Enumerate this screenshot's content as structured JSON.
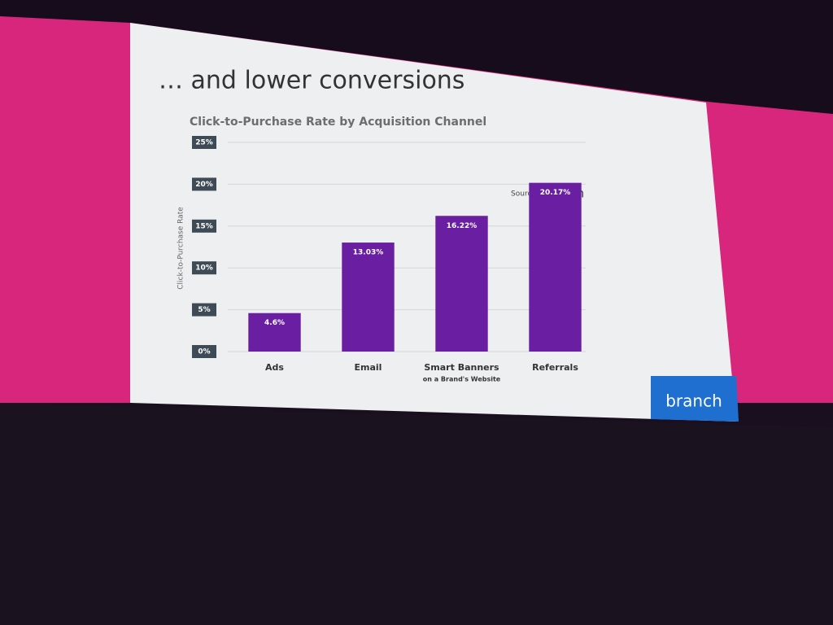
{
  "slide_title": "… and lower conversions",
  "source_label": "Source:",
  "source_name": "branch",
  "logo": "branch",
  "chart_data": {
    "type": "bar",
    "title": "Click-to-Purchase Rate by Acquisition Channel",
    "y_label": "Click-to-Purchase Rate",
    "categories": [
      "Ads",
      "Email",
      "Smart Banners",
      "Referrals"
    ],
    "category_sublabels": [
      null,
      null,
      "on a Brand's Website",
      null
    ],
    "values": [
      4.6,
      13.03,
      16.22,
      20.17
    ],
    "value_labels": [
      "4.6%",
      "13.03%",
      "16.22%",
      "20.17%"
    ],
    "color": "#6a1fa3",
    "ylim": [
      0,
      25
    ],
    "yticks": [
      {
        "value": 0,
        "label": "0%"
      },
      {
        "value": 5,
        "label": "5%"
      },
      {
        "value": 10,
        "label": "10%"
      },
      {
        "value": 15,
        "label": "15%"
      },
      {
        "value": 20,
        "label": "20%"
      },
      {
        "value": 25,
        "label": "25%"
      }
    ],
    "grid": true
  }
}
